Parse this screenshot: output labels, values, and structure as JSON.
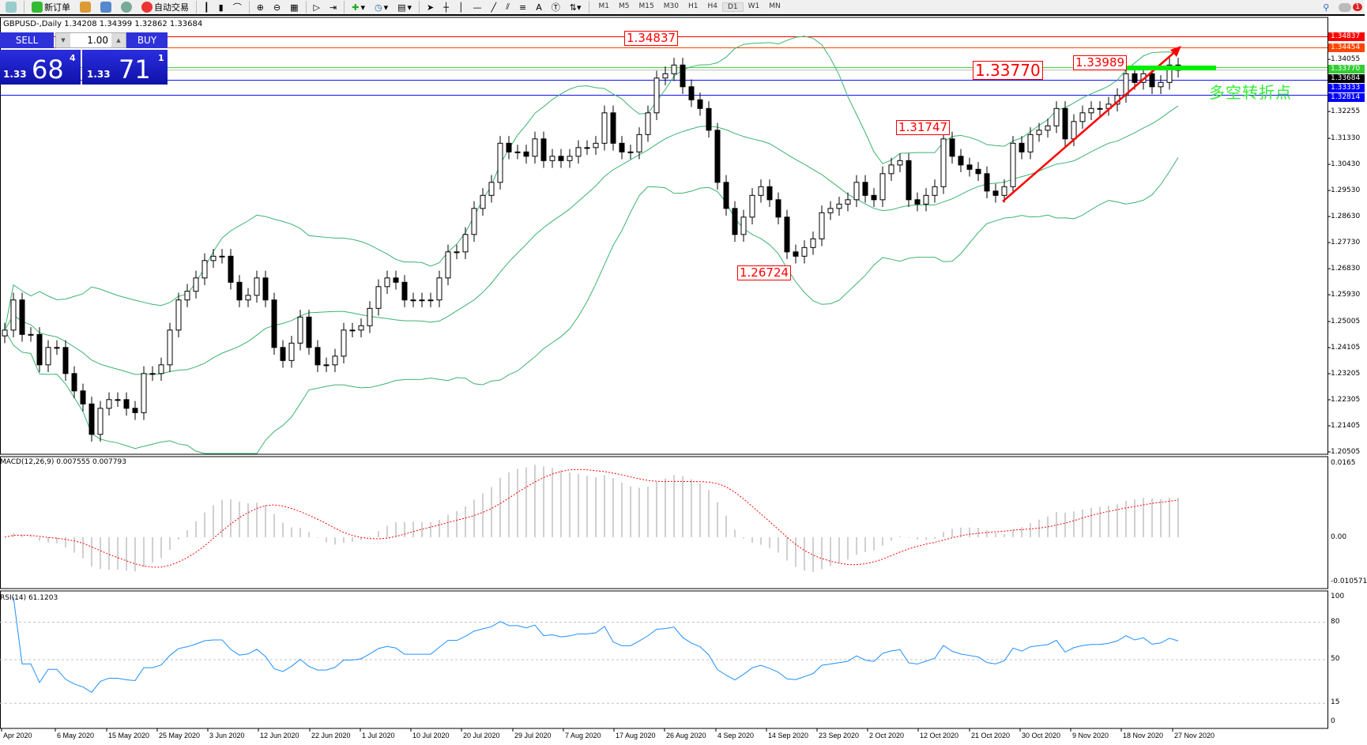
{
  "toolbar": {
    "new_order": "新订单",
    "auto_trading": "自动交易",
    "timeframes": [
      "M1",
      "M5",
      "M15",
      "M30",
      "H1",
      "H4",
      "D1",
      "W1",
      "MN"
    ],
    "active_timeframe": "D1",
    "notification_count": "1"
  },
  "symbol_info": "GBPUSD-,Daily  1.34208 1.34399 1.32862 1.33684",
  "one_click": {
    "sell": "SELL",
    "buy": "BUY",
    "lot": "1.00",
    "bid_small": "1.33",
    "bid_big": "68",
    "bid_pip": "4",
    "ask_small": "1.33",
    "ask_big": "71",
    "ask_pip": "1"
  },
  "annotations": {
    "high": "1.34837",
    "pivot": "1.33770",
    "recent_high": "1.33989",
    "mid": "1.31747",
    "low": "1.26724",
    "pivot_text": "多空转折点"
  },
  "price_axis": [
    "1.34055",
    "1.32255",
    "1.31330",
    "1.30430",
    "1.29530",
    "1.28630",
    "1.27730",
    "1.26830",
    "1.25930",
    "1.25005",
    "1.24105",
    "1.23205",
    "1.22305",
    "1.21405",
    "1.20505"
  ],
  "level_lines": [
    {
      "price": "1.34837",
      "color": "#ff0000"
    },
    {
      "price": "1.34454",
      "color": "#ff4500"
    },
    {
      "price": "1.33770",
      "color": "#33cc33"
    },
    {
      "price": "1.33684",
      "color": "#000000"
    },
    {
      "price": "1.33333",
      "color": "#0000ff"
    },
    {
      "price": "1.32814",
      "color": "#0000ff"
    }
  ],
  "macd": {
    "label": "MACD(12,26,9) 0.007555 0.007793",
    "axis": [
      "0.0165",
      "0.00",
      "-0.010571"
    ]
  },
  "rsi": {
    "label": "RSI(14) 61.1203",
    "axis": [
      "100",
      "80",
      "50",
      "15",
      "0"
    ]
  },
  "dates": [
    "Apr 2020",
    "6 May 2020",
    "15 May 2020",
    "25 May 2020",
    "3 Jun 2020",
    "12 Jun 2020",
    "22 Jun 2020",
    "1 Jul 2020",
    "10 Jul 2020",
    "20 Jul 2020",
    "29 Jul 2020",
    "7 Aug 2020",
    "17 Aug 2020",
    "26 Aug 2020",
    "4 Sep 2020",
    "14 Sep 2020",
    "23 Sep 2020",
    "2 Oct 2020",
    "12 Oct 2020",
    "21 Oct 2020",
    "30 Oct 2020",
    "9 Nov 2020",
    "18 Nov 2020",
    "27 Nov 2020"
  ],
  "chart_data": {
    "type": "candlestick",
    "symbol": "GBPUSD",
    "timeframe": "Daily",
    "ylim": [
      1.20505,
      1.3537
    ],
    "closes": [
      1.2471,
      1.2575,
      1.2456,
      1.2456,
      1.2351,
      1.2411,
      1.2411,
      1.2321,
      1.2261,
      1.2216,
      1.2111,
      1.2201,
      1.2231,
      1.2231,
      1.2201,
      1.2186,
      1.2321,
      1.2321,
      1.2351,
      1.2471,
      1.2575,
      1.2605,
      1.2651,
      1.2711,
      1.2726,
      1.2726,
      1.2636,
      1.2575,
      1.2591,
      1.2651,
      1.2575,
      1.2411,
      1.2366,
      1.2426,
      1.2516,
      1.2411,
      1.2351,
      1.2351,
      1.2381,
      1.2471,
      1.2471,
      1.2486,
      1.2546,
      1.2621,
      1.2651,
      1.2636,
      1.2575,
      1.2575,
      1.2575,
      1.2575,
      1.2651,
      1.2741,
      1.2741,
      1.2801,
      1.2891,
      1.2936,
      1.2981,
      1.3116,
      1.3086,
      1.3086,
      1.3071,
      1.3131,
      1.3056,
      1.3071,
      1.3056,
      1.3071,
      1.3101,
      1.3101,
      1.3116,
      1.3221,
      1.3116,
      1.3086,
      1.3086,
      1.3146,
      1.3221,
      1.3341,
      1.3356,
      1.3386,
      1.3311,
      1.3266,
      1.3236,
      1.3161,
      1.2981,
      1.2891,
      1.2801,
      1.2861,
      1.2936,
      1.2966,
      1.2921,
      1.2861,
      1.2741,
      1.2726,
      1.2756,
      1.2786,
      1.2876,
      1.2891,
      1.2906,
      1.2921,
      1.2981,
      1.2936,
      1.2921,
      1.3011,
      1.3041,
      1.3056,
      1.2921,
      1.2906,
      1.2936,
      1.2966,
      1.3131,
      1.3071,
      1.3041,
      1.3026,
      1.3011,
      1.2951,
      1.2936,
      1.2966,
      1.3116,
      1.3086,
      1.3146,
      1.3161,
      1.3176,
      1.3236,
      1.3131,
      1.3191,
      1.3221,
      1.3236,
      1.3236,
      1.3251,
      1.3281,
      1.3356,
      1.3326,
      1.3356,
      1.3311,
      1.3326,
      1.3386,
      1.3368
    ],
    "indicators": [
      "Bollinger Bands(20,2)",
      "MACD(12,26,9)",
      "RSI(14)"
    ],
    "colors": {
      "bands": "#3cb371",
      "macd_signal": "#ff0000",
      "macd_hist": "#c0c0c0",
      "rsi": "#1e90ff",
      "trend_arrow": "#ff0000",
      "pivot_bar": "#00ee00"
    }
  }
}
